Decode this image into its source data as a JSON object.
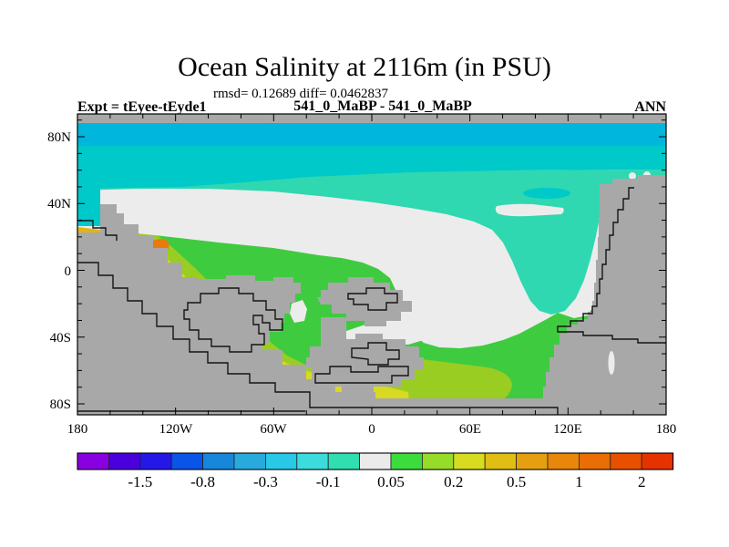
{
  "header": {
    "title": "Ocean Salinity at 2116m (in PSU)",
    "stats_line": "rmsd= 0.12689 diff= 0.0462837",
    "comparison_line": "541_0_MaBP - 541_0_MaBP",
    "expt_label": "Expt = tEyee-tEyde1",
    "season_label": "ANN"
  },
  "axes": {
    "lat_labels": [
      "80N",
      "40N",
      "0",
      "40S",
      "80S"
    ],
    "lon_labels": [
      "180",
      "120W",
      "60W",
      "0",
      "60E",
      "120E",
      "180"
    ]
  },
  "colorbar": {
    "labels": [
      "-1.5",
      "-0.8",
      "-0.3",
      "-0.1",
      "0.05",
      "0.2",
      "0.5",
      "1",
      "2"
    ],
    "colors": [
      "#8800E0",
      "#4A00DC",
      "#2418E8",
      "#0A55E8",
      "#1787DC",
      "#28AADC",
      "#28C8E6",
      "#3CDCDC",
      "#30DFB0",
      "#EBEBEB",
      "#3CDC3C",
      "#96DC28",
      "#D8DC20",
      "#E0BE14",
      "#E6A00F",
      "#E8870A",
      "#E86E05",
      "#E85000",
      "#E63200"
    ]
  },
  "map": {
    "colors": {
      "land": "#A8A8A8",
      "cyan1": "#00B6DC",
      "cyan2": "#00C9C9",
      "teal": "#2FD8B0",
      "white": "#ECECEC",
      "green": "#3FCB3F",
      "ygreen": "#9ACD22",
      "yellow": "#D7DA20",
      "gold": "#E0B515",
      "orange": "#E89210",
      "orange_deep": "#E87A0E"
    }
  },
  "chart_data": {
    "type": "heatmap",
    "subtype": "filled_contour_lat_lon_map",
    "title": "Ocean Salinity at 2116m (in PSU)",
    "units": "PSU",
    "depth_m": 2116,
    "statistics": {
      "rmsd": 0.12689,
      "diff": 0.0462837
    },
    "comparison": "541_0_MaBP - 541_0_MaBP",
    "experiment": "tEyee-tEyde1",
    "season": "ANN",
    "lat_ticks": [
      "80N",
      "40N",
      "0",
      "40S",
      "80S"
    ],
    "lon_ticks": [
      "180",
      "120W",
      "60W",
      "0",
      "60E",
      "120E",
      "180"
    ],
    "contour_levels": [
      -2,
      -1.5,
      -1,
      -0.8,
      -0.5,
      -0.3,
      -0.2,
      -0.1,
      -0.05,
      0.05,
      0.1,
      0.2,
      0.3,
      0.5,
      0.8,
      1,
      1.5,
      2
    ],
    "labeled_levels": [
      -1.5,
      -0.8,
      -0.3,
      -0.1,
      0.05,
      0.2,
      0.5,
      1,
      2
    ],
    "level_colors": [
      "#8800E0",
      "#4A00DC",
      "#2418E8",
      "#0A55E8",
      "#1787DC",
      "#28AADC",
      "#28C8E6",
      "#3CDCDC",
      "#30DFB0",
      "#EBEBEB",
      "#3CDC3C",
      "#96DC28",
      "#D8DC20",
      "#E0BE14",
      "#E6A00F",
      "#E8870A",
      "#E86E05",
      "#E85000",
      "#E63200"
    ],
    "land_color": "#A8A8A8",
    "pattern_summary": "Northern ocean band -0.3 to -0.05 (cyan/teal); large near-zero white region in mid-latitudes; southern ocean mostly +0.05 to +0.3 (green/yellow-green); +0.3 to +1 (yellow/gold/orange) arc along the western continent margin; gray = land/no data at this depth."
  }
}
